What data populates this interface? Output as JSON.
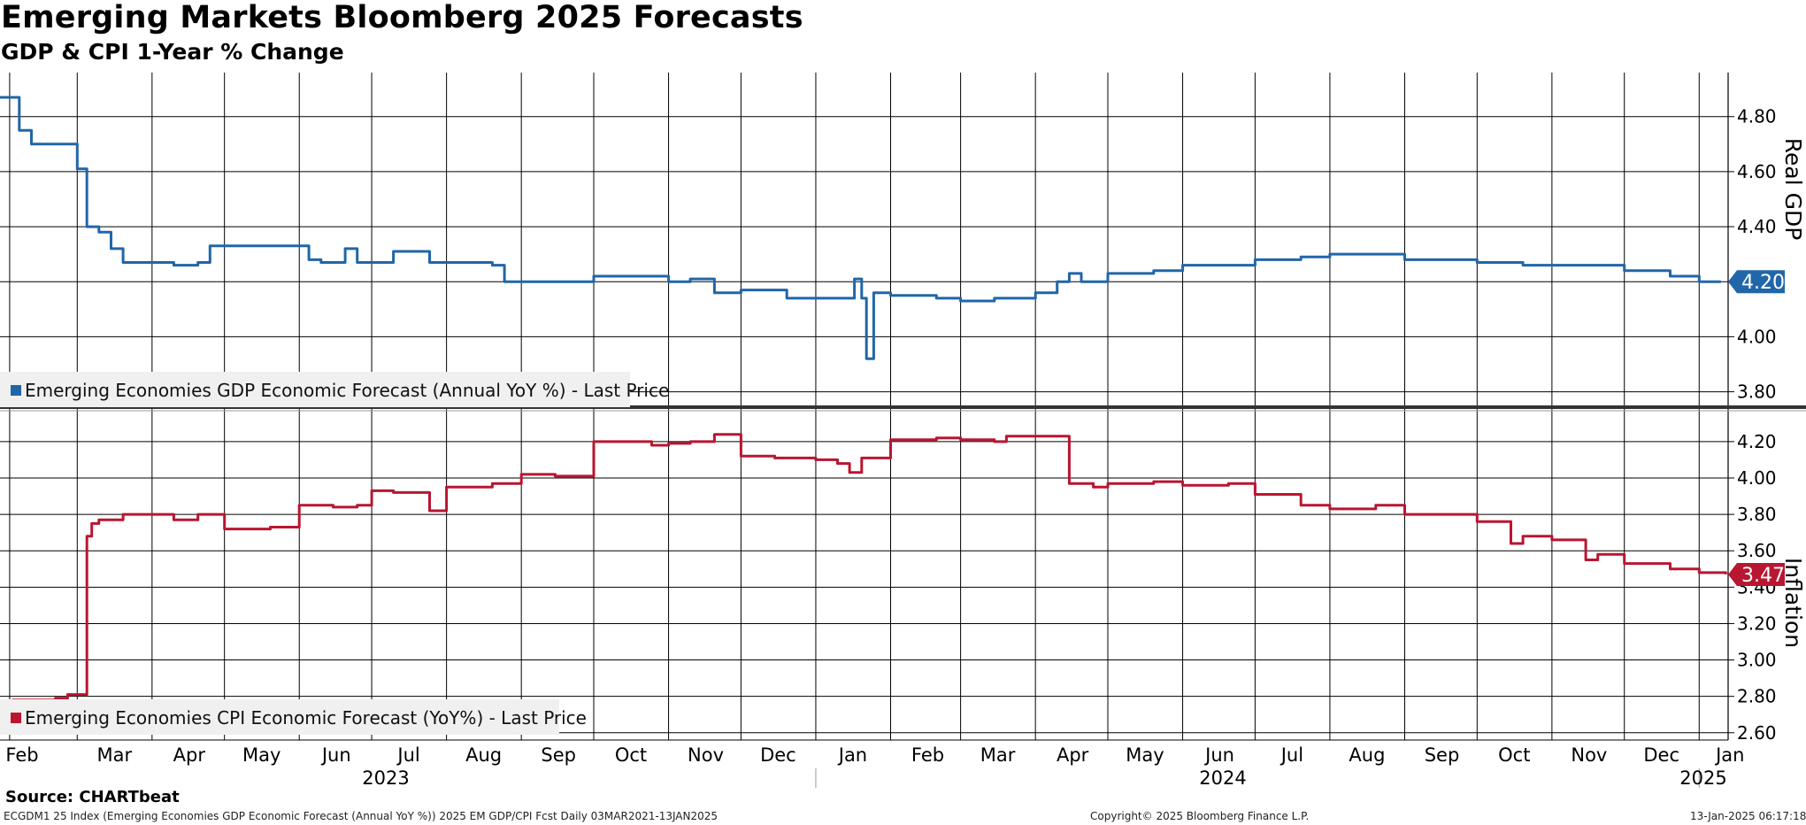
{
  "header": {
    "title": "Emerging Markets Bloomberg 2025 Forecasts",
    "subtitle": "GDP & CPI 1-Year % Change"
  },
  "footer": {
    "source": "Source: CHARTbeat",
    "security": "ECGDM1 25 Index (Emerging Economies GDP Economic Forecast (Annual YoY %)) 2025 EM GDP/CPI Fcst  Daily 03MAR2021-13JAN2025",
    "copyright": "Copyright© 2025 Bloomberg Finance L.P.",
    "timestamp": "13-Jan-2025 06:17:18"
  },
  "colors": {
    "gdp": "#2166a8",
    "cpi": "#b81631",
    "grid": "#000000"
  },
  "chart_data": [
    {
      "type": "line",
      "panel": "top",
      "ylabel": "Real GDP",
      "yticks": [
        "4.80",
        "4.60",
        "4.40",
        "4.20",
        "4.00",
        "3.80"
      ],
      "ylim": [
        3.76,
        4.96
      ],
      "legend": "Emerging Economies GDP Economic Forecast (Annual YoY %) - Last Price",
      "last_value_label": "4.20",
      "series": [
        {
          "x": [
            "2023-01-28",
            "2023-02-02",
            "2023-02-05",
            "2023-02-10",
            "2023-02-20",
            "2023-03-01",
            "2023-03-05",
            "2023-03-10",
            "2023-03-15",
            "2023-03-20",
            "2023-03-25",
            "2023-04-01",
            "2023-04-10",
            "2023-04-20",
            "2023-04-25",
            "2023-05-01",
            "2023-05-15",
            "2023-06-01",
            "2023-06-05",
            "2023-06-10",
            "2023-06-20",
            "2023-06-25",
            "2023-07-01",
            "2023-07-10",
            "2023-07-20",
            "2023-07-25",
            "2023-08-01",
            "2023-08-20",
            "2023-08-25",
            "2023-09-01",
            "2023-09-15",
            "2023-10-01",
            "2023-10-20",
            "2023-11-01",
            "2023-11-10",
            "2023-11-20",
            "2023-12-01",
            "2023-12-20",
            "2024-01-01",
            "2024-01-15",
            "2024-01-17",
            "2024-01-20",
            "2024-01-22",
            "2024-01-25",
            "2024-02-01",
            "2024-02-20",
            "2024-03-01",
            "2024-03-15",
            "2024-04-01",
            "2024-04-10",
            "2024-04-15",
            "2024-04-20",
            "2024-05-01",
            "2024-05-20",
            "2024-06-01",
            "2024-06-20",
            "2024-07-01",
            "2024-07-20",
            "2024-08-01",
            "2024-08-20",
            "2024-09-01",
            "2024-09-20",
            "2024-10-01",
            "2024-10-20",
            "2024-11-01",
            "2024-11-20",
            "2024-12-01",
            "2024-12-20",
            "2025-01-01",
            "2025-01-10"
          ],
          "y": [
            4.87,
            4.87,
            4.75,
            4.7,
            4.7,
            4.61,
            4.4,
            4.38,
            4.32,
            4.27,
            4.27,
            4.27,
            4.26,
            4.27,
            4.33,
            4.33,
            4.33,
            4.33,
            4.28,
            4.27,
            4.32,
            4.27,
            4.27,
            4.31,
            4.31,
            4.27,
            4.27,
            4.26,
            4.2,
            4.2,
            4.2,
            4.22,
            4.22,
            4.2,
            4.21,
            4.16,
            4.17,
            4.14,
            4.14,
            4.14,
            4.21,
            4.14,
            3.92,
            4.16,
            4.15,
            4.14,
            4.13,
            4.14,
            4.16,
            4.2,
            4.23,
            4.2,
            4.23,
            4.24,
            4.26,
            4.26,
            4.28,
            4.29,
            4.3,
            4.3,
            4.28,
            4.28,
            4.27,
            4.26,
            4.26,
            4.26,
            4.24,
            4.22,
            4.2,
            4.2
          ]
        }
      ]
    },
    {
      "type": "line",
      "panel": "bottom",
      "ylabel": "Inflation",
      "yticks": [
        "4.20",
        "4.00",
        "3.80",
        "3.60",
        "3.40",
        "3.20",
        "3.00",
        "2.80",
        "2.60"
      ],
      "ylim": [
        2.56,
        4.36
      ],
      "legend": "Emerging Economies CPI Economic Forecast (YoY%) - Last Price",
      "last_value_label": "3.47",
      "series": [
        {
          "x": [
            "2023-02-02",
            "2023-02-20",
            "2023-02-25",
            "2023-03-02",
            "2023-03-05",
            "2023-03-07",
            "2023-03-10",
            "2023-03-20",
            "2023-04-01",
            "2023-04-10",
            "2023-04-20",
            "2023-05-01",
            "2023-05-20",
            "2023-06-01",
            "2023-06-15",
            "2023-06-25",
            "2023-07-01",
            "2023-07-10",
            "2023-07-25",
            "2023-08-01",
            "2023-08-20",
            "2023-09-01",
            "2023-09-10",
            "2023-09-15",
            "2023-09-20",
            "2023-10-01",
            "2023-10-15",
            "2023-10-25",
            "2023-11-01",
            "2023-11-10",
            "2023-11-20",
            "2023-12-01",
            "2023-12-15",
            "2024-01-01",
            "2024-01-10",
            "2024-01-15",
            "2024-01-20",
            "2024-02-01",
            "2024-02-20",
            "2024-03-01",
            "2024-03-15",
            "2024-03-20",
            "2024-03-30",
            "2024-04-05",
            "2024-04-15",
            "2024-04-25",
            "2024-05-01",
            "2024-05-20",
            "2024-06-01",
            "2024-06-20",
            "2024-07-01",
            "2024-07-20",
            "2024-08-01",
            "2024-08-20",
            "2024-09-01",
            "2024-09-20",
            "2024-10-01",
            "2024-10-15",
            "2024-10-20",
            "2024-11-01",
            "2024-11-15",
            "2024-11-20",
            "2024-12-01",
            "2024-12-20",
            "2025-01-01",
            "2025-01-12"
          ],
          "y": [
            2.78,
            2.79,
            2.81,
            2.81,
            3.68,
            3.75,
            3.77,
            3.8,
            3.8,
            3.77,
            3.8,
            3.72,
            3.73,
            3.85,
            3.84,
            3.85,
            3.93,
            3.92,
            3.82,
            3.95,
            3.97,
            4.02,
            4.02,
            4.01,
            4.01,
            4.2,
            4.2,
            4.18,
            4.19,
            4.2,
            4.24,
            4.12,
            4.11,
            4.1,
            4.08,
            4.03,
            4.11,
            4.21,
            4.22,
            4.21,
            4.2,
            4.23,
            4.23,
            4.23,
            3.97,
            3.95,
            3.97,
            3.98,
            3.96,
            3.97,
            3.91,
            3.85,
            3.83,
            3.85,
            3.8,
            3.8,
            3.76,
            3.64,
            3.68,
            3.66,
            3.55,
            3.58,
            3.53,
            3.5,
            3.48,
            3.47
          ]
        }
      ]
    }
  ],
  "x_axis": {
    "months": [
      "Feb",
      "Mar",
      "Apr",
      "May",
      "Jun",
      "Jul",
      "Aug",
      "Sep",
      "Oct",
      "Nov",
      "Dec",
      "Jan",
      "Feb",
      "Mar",
      "Apr",
      "May",
      "Jun",
      "Jul",
      "Aug",
      "Sep",
      "Oct",
      "Nov",
      "Dec",
      "Jan"
    ],
    "years": [
      "2023",
      "2024",
      "2025"
    ]
  }
}
